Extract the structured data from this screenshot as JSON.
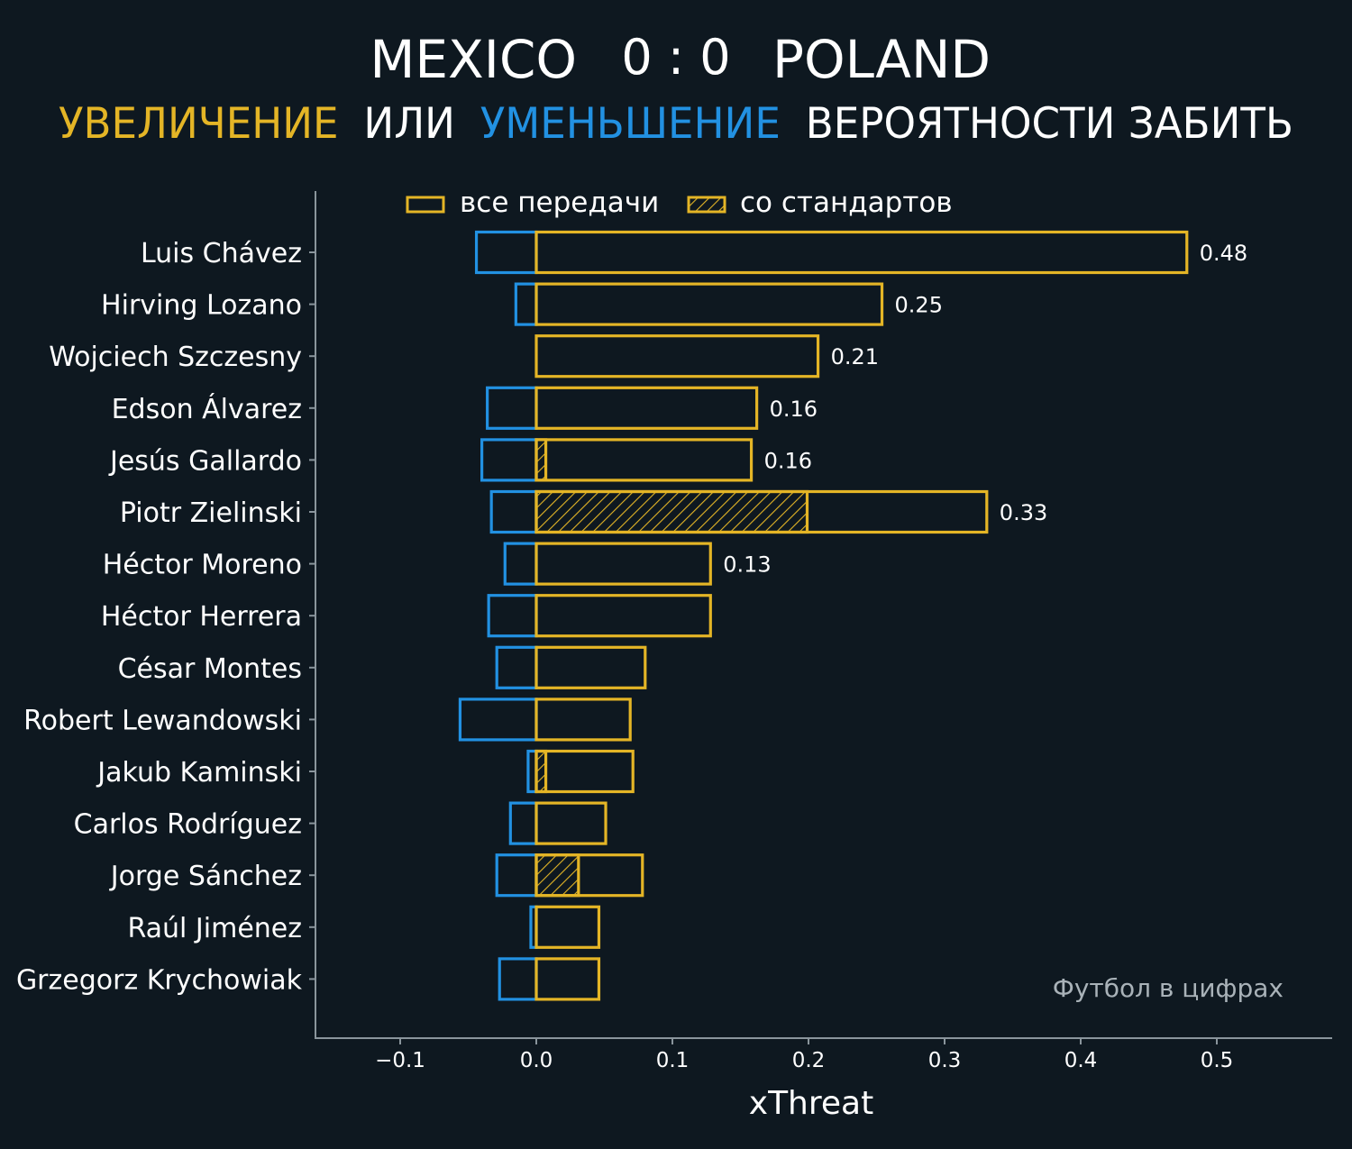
{
  "header": {
    "team_home": "MEXICO",
    "score": "0 : 0",
    "team_away": "POLAND",
    "subtitle_increase": "УВЕЛИЧЕНИЕ",
    "subtitle_or": "ИЛИ",
    "subtitle_decrease": "УМЕНЬШЕНИЕ",
    "subtitle_rest": "ВЕРОЯТНОСТИ ЗАБИТЬ"
  },
  "colors": {
    "background": "#0e1820",
    "positive": "#e4b526",
    "negative": "#2291e2",
    "text": "#ffffff",
    "axis": "#8a959c",
    "watermark": "#a9b2b8"
  },
  "watermark": "Футбол в цифрах",
  "chart_data": {
    "type": "bar",
    "orientation": "horizontal",
    "title": "MEXICO 0 : 0 POLAND",
    "xlabel": "xThreat",
    "ylabel": "",
    "xlim": [
      -0.16,
      0.56
    ],
    "xticks": [
      -0.1,
      0.0,
      0.1,
      0.2,
      0.3,
      0.4,
      0.5
    ],
    "xtick_labels": [
      "−0.1",
      "0.0",
      "0.1",
      "0.2",
      "0.3",
      "0.4",
      "0.5"
    ],
    "legend": {
      "position": "top",
      "items": [
        {
          "label": "все передачи",
          "style": "outline"
        },
        {
          "label": "со стандартов",
          "style": "hatched"
        }
      ]
    },
    "categories": [
      "Luis Chávez",
      "Hirving Lozano",
      "Wojciech Szczesny",
      "Edson Álvarez",
      "Jesús Gallardo",
      "Piotr Zielinski",
      "Héctor Moreno",
      "Héctor Herrera",
      "César Montes",
      "Robert Lewandowski",
      "Jakub Kaminski",
      "Carlos Rodríguez",
      "Jorge Sánchez",
      "Raúl Jiménez",
      "Grzegorz Krychowiak"
    ],
    "series": [
      {
        "name": "все передачи (+)",
        "values": [
          0.478,
          0.254,
          0.207,
          0.162,
          0.158,
          0.331,
          0.128,
          0.128,
          0.08,
          0.069,
          0.071,
          0.051,
          0.078,
          0.046,
          0.046
        ]
      },
      {
        "name": "все передачи (−)",
        "values": [
          -0.044,
          -0.015,
          0.0,
          -0.036,
          -0.04,
          -0.033,
          -0.023,
          -0.035,
          -0.029,
          -0.056,
          -0.006,
          -0.019,
          -0.029,
          -0.004,
          -0.027
        ]
      },
      {
        "name": "со стандартов",
        "values": [
          0,
          0,
          0,
          0,
          0.007,
          0.199,
          0,
          0,
          0,
          0,
          0.007,
          0,
          0.031,
          0,
          0
        ]
      }
    ],
    "data_labels": [
      "0.48",
      "0.25",
      "0.21",
      "0.16",
      "0.16",
      "0.33",
      "0.13",
      "",
      "",
      "",
      "",
      "",
      "",
      "",
      ""
    ]
  }
}
